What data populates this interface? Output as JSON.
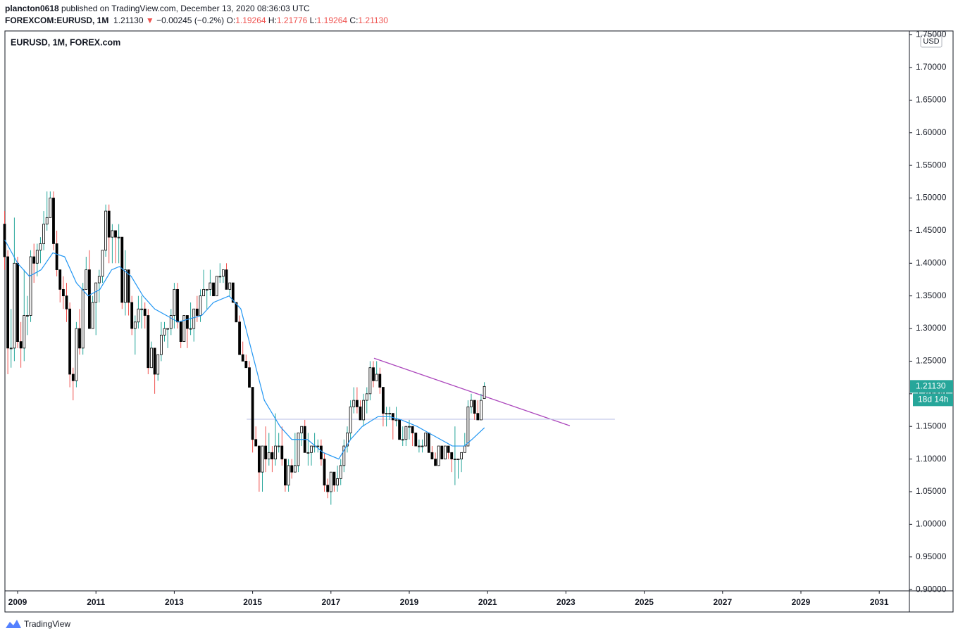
{
  "header": {
    "author": "plancton0618",
    "published": "published on TradingView.com, December 13, 2020 08:36:03 UTC",
    "symbol": "FOREXCOM:EURUSD, 1M",
    "last": "1.21130",
    "arrow": "▼",
    "change": "−0.00245 (−0.2%)",
    "o_label": "O:",
    "o": "1.19264",
    "h_label": "H:",
    "h": "1.21776",
    "l_label": "L:",
    "l": "1.19264",
    "c_label": "C:",
    "c": "1.21130"
  },
  "chart_data": {
    "type": "candlestick",
    "title": "EURUSD, 1M, FOREX.com",
    "currency": "USD",
    "countdown": "18d 14h",
    "up_color": "#26a69a",
    "down_color": "#ef5350",
    "last_color": "#26a69a",
    "xlim": [
      2008.676,
      2031.77
    ],
    "ylim": [
      0.898,
      1.756
    ],
    "xticks": [
      2009,
      2011,
      2013,
      2015,
      2017,
      2019,
      2021,
      2023,
      2025,
      2027,
      2029,
      2031
    ],
    "yticks": [
      {
        "value": 0.9,
        "label": "0.90000"
      },
      {
        "value": 0.95,
        "label": "0.95000"
      },
      {
        "value": 1.0,
        "label": "1.00000"
      },
      {
        "value": 1.05,
        "label": "1.05000"
      },
      {
        "value": 1.1,
        "label": "1.10000"
      },
      {
        "value": 1.15,
        "label": "1.15000"
      },
      {
        "value": 1.2,
        "label": "1.20000"
      },
      {
        "value": 1.25,
        "label": "1.25000"
      },
      {
        "value": 1.3,
        "label": "1.30000"
      },
      {
        "value": 1.35,
        "label": "1.35000"
      },
      {
        "value": 1.4,
        "label": "1.40000"
      },
      {
        "value": 1.45,
        "label": "1.45000"
      },
      {
        "value": 1.5,
        "label": "1.50000"
      },
      {
        "value": 1.55,
        "label": "1.55000"
      },
      {
        "value": 1.6,
        "label": "1.60000"
      },
      {
        "value": 1.65,
        "label": "1.65000"
      },
      {
        "value": 1.7,
        "label": "1.70000"
      },
      {
        "value": 1.75,
        "label": "1.75000"
      }
    ],
    "x": [
      2008.667,
      2008.75,
      2008.833,
      2008.917,
      2009.0,
      2009.083,
      2009.167,
      2009.25,
      2009.333,
      2009.417,
      2009.5,
      2009.583,
      2009.667,
      2009.75,
      2009.833,
      2009.917,
      2010.0,
      2010.083,
      2010.167,
      2010.25,
      2010.333,
      2010.417,
      2010.5,
      2010.583,
      2010.667,
      2010.75,
      2010.833,
      2010.917,
      2011.0,
      2011.083,
      2011.167,
      2011.25,
      2011.333,
      2011.417,
      2011.5,
      2011.583,
      2011.667,
      2011.75,
      2011.833,
      2011.917,
      2012.0,
      2012.083,
      2012.167,
      2012.25,
      2012.333,
      2012.417,
      2012.5,
      2012.583,
      2012.667,
      2012.75,
      2012.833,
      2012.917,
      2013.0,
      2013.083,
      2013.167,
      2013.25,
      2013.333,
      2013.417,
      2013.5,
      2013.583,
      2013.667,
      2013.75,
      2013.833,
      2013.917,
      2014.0,
      2014.083,
      2014.167,
      2014.25,
      2014.333,
      2014.417,
      2014.5,
      2014.583,
      2014.667,
      2014.75,
      2014.833,
      2014.917,
      2015.0,
      2015.083,
      2015.167,
      2015.25,
      2015.333,
      2015.417,
      2015.5,
      2015.583,
      2015.667,
      2015.75,
      2015.833,
      2015.917,
      2016.0,
      2016.083,
      2016.167,
      2016.25,
      2016.333,
      2016.417,
      2016.5,
      2016.583,
      2016.667,
      2016.75,
      2016.833,
      2016.917,
      2017.0,
      2017.083,
      2017.167,
      2017.25,
      2017.333,
      2017.417,
      2017.5,
      2017.583,
      2017.667,
      2017.75,
      2017.833,
      2017.917,
      2018.0,
      2018.083,
      2018.167,
      2018.25,
      2018.333,
      2018.417,
      2018.5,
      2018.583,
      2018.667,
      2018.75,
      2018.833,
      2018.917,
      2019.0,
      2019.083,
      2019.167,
      2019.25,
      2019.333,
      2019.417,
      2019.5,
      2019.583,
      2019.667,
      2019.75,
      2019.833,
      2019.917,
      2020.0,
      2020.083,
      2020.167,
      2020.25,
      2020.333,
      2020.417,
      2020.5,
      2020.583,
      2020.667,
      2020.75,
      2020.833,
      2020.917
    ],
    "ohlc": [
      [
        1.46,
        1.48,
        1.39,
        1.41
      ],
      [
        1.41,
        1.42,
        1.23,
        1.27
      ],
      [
        1.27,
        1.33,
        1.24,
        1.27
      ],
      [
        1.27,
        1.47,
        1.25,
        1.4
      ],
      [
        1.4,
        1.41,
        1.27,
        1.28
      ],
      [
        1.28,
        1.31,
        1.24,
        1.27
      ],
      [
        1.27,
        1.39,
        1.25,
        1.32
      ],
      [
        1.32,
        1.35,
        1.29,
        1.32
      ],
      [
        1.32,
        1.42,
        1.31,
        1.41
      ],
      [
        1.41,
        1.43,
        1.37,
        1.4
      ],
      [
        1.4,
        1.43,
        1.38,
        1.42
      ],
      [
        1.42,
        1.44,
        1.4,
        1.43
      ],
      [
        1.43,
        1.48,
        1.42,
        1.46
      ],
      [
        1.46,
        1.51,
        1.45,
        1.47
      ],
      [
        1.47,
        1.51,
        1.47,
        1.5
      ],
      [
        1.5,
        1.51,
        1.42,
        1.43
      ],
      [
        1.43,
        1.45,
        1.38,
        1.39
      ],
      [
        1.39,
        1.39,
        1.34,
        1.36
      ],
      [
        1.36,
        1.38,
        1.33,
        1.35
      ],
      [
        1.35,
        1.37,
        1.31,
        1.33
      ],
      [
        1.33,
        1.34,
        1.21,
        1.23
      ],
      [
        1.23,
        1.24,
        1.19,
        1.22
      ],
      [
        1.22,
        1.31,
        1.21,
        1.3
      ],
      [
        1.3,
        1.33,
        1.26,
        1.27
      ],
      [
        1.27,
        1.37,
        1.26,
        1.36
      ],
      [
        1.36,
        1.41,
        1.36,
        1.39
      ],
      [
        1.39,
        1.42,
        1.3,
        1.3
      ],
      [
        1.3,
        1.35,
        1.3,
        1.34
      ],
      [
        1.34,
        1.37,
        1.29,
        1.37
      ],
      [
        1.37,
        1.39,
        1.34,
        1.38
      ],
      [
        1.38,
        1.42,
        1.37,
        1.42
      ],
      [
        1.42,
        1.49,
        1.41,
        1.48
      ],
      [
        1.48,
        1.49,
        1.4,
        1.44
      ],
      [
        1.44,
        1.46,
        1.4,
        1.45
      ],
      [
        1.45,
        1.45,
        1.4,
        1.44
      ],
      [
        1.44,
        1.46,
        1.4,
        1.44
      ],
      [
        1.44,
        1.44,
        1.33,
        1.34
      ],
      [
        1.34,
        1.42,
        1.32,
        1.39
      ],
      [
        1.39,
        1.39,
        1.32,
        1.34
      ],
      [
        1.34,
        1.35,
        1.29,
        1.3
      ],
      [
        1.3,
        1.32,
        1.26,
        1.31
      ],
      [
        1.31,
        1.35,
        1.3,
        1.33
      ],
      [
        1.33,
        1.35,
        1.3,
        1.33
      ],
      [
        1.33,
        1.34,
        1.3,
        1.32
      ],
      [
        1.32,
        1.33,
        1.23,
        1.24
      ],
      [
        1.24,
        1.28,
        1.24,
        1.27
      ],
      [
        1.27,
        1.27,
        1.2,
        1.23
      ],
      [
        1.23,
        1.26,
        1.22,
        1.26
      ],
      [
        1.26,
        1.31,
        1.25,
        1.29
      ],
      [
        1.29,
        1.31,
        1.28,
        1.3
      ],
      [
        1.3,
        1.3,
        1.27,
        1.3
      ],
      [
        1.3,
        1.33,
        1.29,
        1.32
      ],
      [
        1.32,
        1.37,
        1.3,
        1.36
      ],
      [
        1.36,
        1.37,
        1.3,
        1.31
      ],
      [
        1.31,
        1.31,
        1.27,
        1.28
      ],
      [
        1.28,
        1.32,
        1.28,
        1.32
      ],
      [
        1.32,
        1.32,
        1.27,
        1.3
      ],
      [
        1.3,
        1.34,
        1.29,
        1.3
      ],
      [
        1.3,
        1.33,
        1.28,
        1.33
      ],
      [
        1.33,
        1.35,
        1.31,
        1.32
      ],
      [
        1.32,
        1.36,
        1.31,
        1.35
      ],
      [
        1.35,
        1.39,
        1.35,
        1.36
      ],
      [
        1.36,
        1.36,
        1.33,
        1.36
      ],
      [
        1.36,
        1.39,
        1.35,
        1.37
      ],
      [
        1.37,
        1.37,
        1.35,
        1.35
      ],
      [
        1.35,
        1.38,
        1.35,
        1.38
      ],
      [
        1.38,
        1.4,
        1.37,
        1.38
      ],
      [
        1.38,
        1.39,
        1.37,
        1.39
      ],
      [
        1.39,
        1.4,
        1.36,
        1.36
      ],
      [
        1.36,
        1.37,
        1.35,
        1.37
      ],
      [
        1.37,
        1.37,
        1.34,
        1.34
      ],
      [
        1.34,
        1.34,
        1.31,
        1.31
      ],
      [
        1.31,
        1.32,
        1.26,
        1.26
      ],
      [
        1.26,
        1.28,
        1.25,
        1.25
      ],
      [
        1.25,
        1.26,
        1.24,
        1.24
      ],
      [
        1.24,
        1.25,
        1.21,
        1.21
      ],
      [
        1.21,
        1.21,
        1.11,
        1.13
      ],
      [
        1.13,
        1.15,
        1.12,
        1.12
      ],
      [
        1.12,
        1.12,
        1.05,
        1.08
      ],
      [
        1.08,
        1.12,
        1.05,
        1.12
      ],
      [
        1.12,
        1.15,
        1.08,
        1.1
      ],
      [
        1.1,
        1.14,
        1.09,
        1.11
      ],
      [
        1.11,
        1.12,
        1.08,
        1.1
      ],
      [
        1.1,
        1.17,
        1.09,
        1.12
      ],
      [
        1.12,
        1.14,
        1.11,
        1.12
      ],
      [
        1.12,
        1.15,
        1.09,
        1.1
      ],
      [
        1.1,
        1.1,
        1.05,
        1.06
      ],
      [
        1.06,
        1.1,
        1.05,
        1.09
      ],
      [
        1.09,
        1.1,
        1.07,
        1.08
      ],
      [
        1.08,
        1.14,
        1.08,
        1.09
      ],
      [
        1.09,
        1.14,
        1.08,
        1.14
      ],
      [
        1.14,
        1.15,
        1.12,
        1.15
      ],
      [
        1.15,
        1.16,
        1.11,
        1.11
      ],
      [
        1.11,
        1.14,
        1.09,
        1.11
      ],
      [
        1.11,
        1.12,
        1.09,
        1.12
      ],
      [
        1.12,
        1.14,
        1.11,
        1.12
      ],
      [
        1.12,
        1.13,
        1.11,
        1.12
      ],
      [
        1.12,
        1.13,
        1.09,
        1.1
      ],
      [
        1.1,
        1.11,
        1.05,
        1.06
      ],
      [
        1.06,
        1.07,
        1.04,
        1.05
      ],
      [
        1.05,
        1.08,
        1.03,
        1.08
      ],
      [
        1.08,
        1.08,
        1.05,
        1.06
      ],
      [
        1.06,
        1.09,
        1.05,
        1.07
      ],
      [
        1.07,
        1.1,
        1.06,
        1.09
      ],
      [
        1.09,
        1.13,
        1.08,
        1.12
      ],
      [
        1.12,
        1.15,
        1.11,
        1.14
      ],
      [
        1.14,
        1.19,
        1.13,
        1.18
      ],
      [
        1.18,
        1.21,
        1.17,
        1.19
      ],
      [
        1.19,
        1.21,
        1.17,
        1.18
      ],
      [
        1.18,
        1.19,
        1.16,
        1.16
      ],
      [
        1.16,
        1.2,
        1.15,
        1.19
      ],
      [
        1.19,
        1.21,
        1.17,
        1.2
      ],
      [
        1.2,
        1.25,
        1.19,
        1.24
      ],
      [
        1.24,
        1.25,
        1.21,
        1.22
      ],
      [
        1.22,
        1.25,
        1.22,
        1.23
      ],
      [
        1.23,
        1.24,
        1.2,
        1.21
      ],
      [
        1.21,
        1.21,
        1.15,
        1.17
      ],
      [
        1.17,
        1.18,
        1.15,
        1.17
      ],
      [
        1.17,
        1.18,
        1.16,
        1.17
      ],
      [
        1.17,
        1.17,
        1.13,
        1.16
      ],
      [
        1.16,
        1.18,
        1.15,
        1.16
      ],
      [
        1.16,
        1.16,
        1.13,
        1.13
      ],
      [
        1.13,
        1.15,
        1.12,
        1.13
      ],
      [
        1.13,
        1.15,
        1.12,
        1.15
      ],
      [
        1.15,
        1.16,
        1.13,
        1.15
      ],
      [
        1.15,
        1.15,
        1.12,
        1.14
      ],
      [
        1.14,
        1.14,
        1.12,
        1.12
      ],
      [
        1.12,
        1.13,
        1.11,
        1.12
      ],
      [
        1.12,
        1.13,
        1.11,
        1.12
      ],
      [
        1.12,
        1.14,
        1.12,
        1.14
      ],
      [
        1.14,
        1.14,
        1.11,
        1.11
      ],
      [
        1.11,
        1.12,
        1.1,
        1.1
      ],
      [
        1.1,
        1.11,
        1.09,
        1.09
      ],
      [
        1.09,
        1.12,
        1.09,
        1.12
      ],
      [
        1.12,
        1.12,
        1.1,
        1.1
      ],
      [
        1.1,
        1.12,
        1.1,
        1.12
      ],
      [
        1.12,
        1.12,
        1.1,
        1.11
      ],
      [
        1.11,
        1.11,
        1.08,
        1.1
      ],
      [
        1.1,
        1.15,
        1.06,
        1.1
      ],
      [
        1.1,
        1.1,
        1.07,
        1.1
      ],
      [
        1.1,
        1.11,
        1.08,
        1.11
      ],
      [
        1.11,
        1.14,
        1.11,
        1.12
      ],
      [
        1.12,
        1.19,
        1.12,
        1.18
      ],
      [
        1.18,
        1.2,
        1.17,
        1.19
      ],
      [
        1.19,
        1.19,
        1.16,
        1.17
      ],
      [
        1.17,
        1.19,
        1.16,
        1.16
      ],
      [
        1.16,
        1.2,
        1.16,
        1.19
      ],
      [
        1.19264,
        1.21776,
        1.19264,
        1.2113
      ]
    ],
    "ma": {
      "color": "#2196f3",
      "x": [
        2008.67,
        2009.0,
        2009.3,
        2009.6,
        2009.9,
        2010.2,
        2010.5,
        2010.8,
        2011.1,
        2011.4,
        2011.6,
        2011.9,
        2012.2,
        2012.5,
        2012.8,
        2013.1,
        2013.4,
        2013.7,
        2014.0,
        2014.4,
        2014.7,
        2015.0,
        2015.3,
        2015.7,
        2016.0,
        2016.4,
        2016.8,
        2017.2,
        2017.5,
        2017.8,
        2018.2,
        2018.5,
        2018.8,
        2019.2,
        2019.5,
        2019.8,
        2020.1,
        2020.4,
        2020.6,
        2020.92
      ],
      "values": [
        1.436,
        1.4,
        1.38,
        1.39,
        1.416,
        1.41,
        1.37,
        1.35,
        1.36,
        1.39,
        1.395,
        1.38,
        1.35,
        1.33,
        1.32,
        1.31,
        1.315,
        1.32,
        1.34,
        1.35,
        1.33,
        1.26,
        1.19,
        1.15,
        1.13,
        1.13,
        1.11,
        1.1,
        1.13,
        1.15,
        1.165,
        1.165,
        1.16,
        1.15,
        1.14,
        1.13,
        1.12,
        1.12,
        1.13,
        1.148
      ]
    },
    "lines": [
      {
        "color": "#ab47bc",
        "x": [
          2018.1,
          2023.1
        ],
        "y": [
          1.2545,
          1.151
        ]
      },
      {
        "color": "#c5cae9",
        "x": [
          2014.85,
          2024.25
        ],
        "y": [
          1.161,
          1.161
        ]
      }
    ]
  },
  "footer": {
    "brand": "TradingView"
  }
}
